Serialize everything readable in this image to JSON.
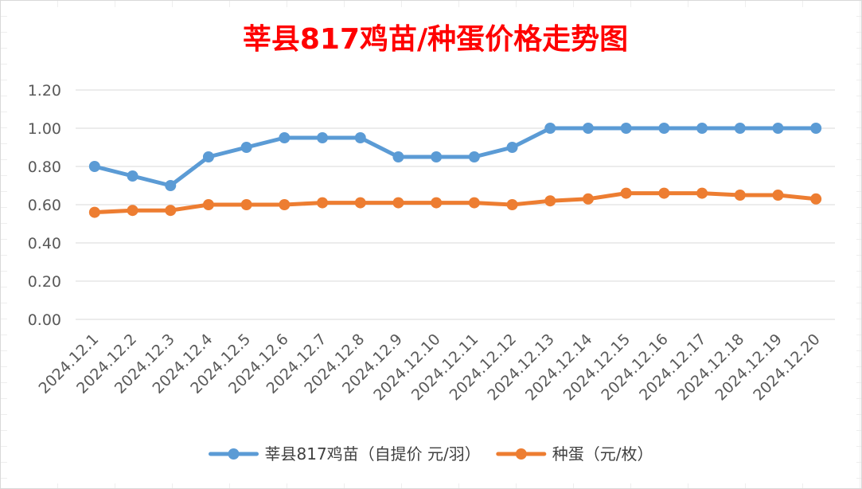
{
  "chart_data": {
    "type": "line",
    "title": "莘县817鸡苗/种蛋价格走势图",
    "title_color": "#ff0000",
    "categories": [
      "2024.12.1",
      "2024.12.2",
      "2024.12.3",
      "2024.12.4",
      "2024.12.5",
      "2024.12.6",
      "2024.12.7",
      "2024.12.8",
      "2024.12.9",
      "2024.12.10",
      "2024.12.11",
      "2024.12.12",
      "2024.12.13",
      "2024.12.14",
      "2024.12.15",
      "2024.12.16",
      "2024.12.17",
      "2024.12.18",
      "2024.12.19",
      "2024.12.20"
    ],
    "ylim": [
      0,
      1.2
    ],
    "yticks": [
      "0.00",
      "0.20",
      "0.40",
      "0.60",
      "0.80",
      "1.00",
      "1.20"
    ],
    "grid": true,
    "legend_position": "bottom",
    "series": [
      {
        "name": "莘县817鸡苗（自提价 元/羽）",
        "color": "#5b9bd5",
        "values": [
          0.8,
          0.75,
          0.7,
          0.85,
          0.9,
          0.95,
          0.95,
          0.95,
          0.85,
          0.85,
          0.85,
          0.9,
          1.0,
          1.0,
          1.0,
          1.0,
          1.0,
          1.0,
          1.0,
          1.0
        ]
      },
      {
        "name": "种蛋（元/枚）",
        "color": "#ed7d31",
        "values": [
          0.56,
          0.57,
          0.57,
          0.6,
          0.6,
          0.6,
          0.61,
          0.61,
          0.61,
          0.61,
          0.61,
          0.6,
          0.62,
          0.63,
          0.66,
          0.66,
          0.66,
          0.65,
          0.65,
          0.63
        ]
      }
    ]
  }
}
